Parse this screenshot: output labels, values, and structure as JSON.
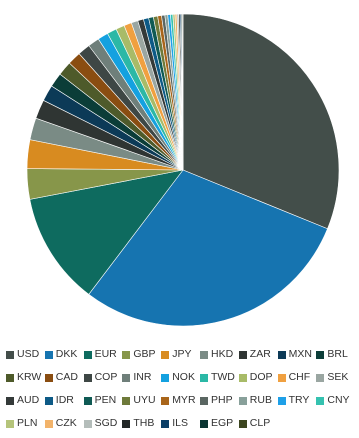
{
  "chart_data": {
    "type": "pie",
    "title": "",
    "legend_position": "bottom",
    "slices": [
      {
        "label": "USD",
        "value": 31.5,
        "color": "#434e4a"
      },
      {
        "label": "DKK",
        "value": 29.5,
        "color": "#1674b0"
      },
      {
        "label": "EUR",
        "value": 11.8,
        "color": "#0e6b5f"
      },
      {
        "label": "GBP",
        "value": 3.2,
        "color": "#87964a"
      },
      {
        "label": "JPY",
        "value": 3.0,
        "color": "#d88b20"
      },
      {
        "label": "HKD",
        "value": 2.3,
        "color": "#7a8b85"
      },
      {
        "label": "ZAR",
        "value": 2.0,
        "color": "#2f3533"
      },
      {
        "label": "MXN",
        "value": 1.7,
        "color": "#0c3a57"
      },
      {
        "label": "BRL",
        "value": 1.5,
        "color": "#0b3d38"
      },
      {
        "label": "KRW",
        "value": 1.5,
        "color": "#4e5a2a"
      },
      {
        "label": "CAD",
        "value": 1.4,
        "color": "#8a4d11"
      },
      {
        "label": "COP",
        "value": 1.3,
        "color": "#3e4745"
      },
      {
        "label": "INR",
        "value": 1.2,
        "color": "#6f7f7a"
      },
      {
        "label": "NOK",
        "value": 1.1,
        "color": "#14a1e0"
      },
      {
        "label": "TWD",
        "value": 1.0,
        "color": "#2bb8a6"
      },
      {
        "label": "DOP",
        "value": 0.9,
        "color": "#a8bb68"
      },
      {
        "label": "CHF",
        "value": 0.8,
        "color": "#f0a040"
      },
      {
        "label": "SEK",
        "value": 0.7,
        "color": "#9aa6a2"
      },
      {
        "label": "AUD",
        "value": 0.6,
        "color": "#343a39"
      },
      {
        "label": "IDR",
        "value": 0.55,
        "color": "#0d5a86"
      },
      {
        "label": "PEN",
        "value": 0.5,
        "color": "#0f5a54"
      },
      {
        "label": "UYU",
        "value": 0.45,
        "color": "#6e7a3a"
      },
      {
        "label": "MYR",
        "value": 0.4,
        "color": "#a9651a"
      },
      {
        "label": "PHP",
        "value": 0.35,
        "color": "#5a6662"
      },
      {
        "label": "RUB",
        "value": 0.3,
        "color": "#88a09a"
      },
      {
        "label": "TRY",
        "value": 0.28,
        "color": "#1ea0e8"
      },
      {
        "label": "CNY",
        "value": 0.25,
        "color": "#35c2b0"
      },
      {
        "label": "PLN",
        "value": 0.22,
        "color": "#b5c47a"
      },
      {
        "label": "CZK",
        "value": 0.2,
        "color": "#f2b36a"
      },
      {
        "label": "SGD",
        "value": 0.18,
        "color": "#b4bdba"
      },
      {
        "label": "THB",
        "value": 0.15,
        "color": "#222726"
      },
      {
        "label": "ILS",
        "value": 0.12,
        "color": "#0a3e66"
      },
      {
        "label": "EGP",
        "value": 0.1,
        "color": "#0a3532"
      },
      {
        "label": "CLP",
        "value": 0.08,
        "color": "#3d4620"
      }
    ]
  }
}
